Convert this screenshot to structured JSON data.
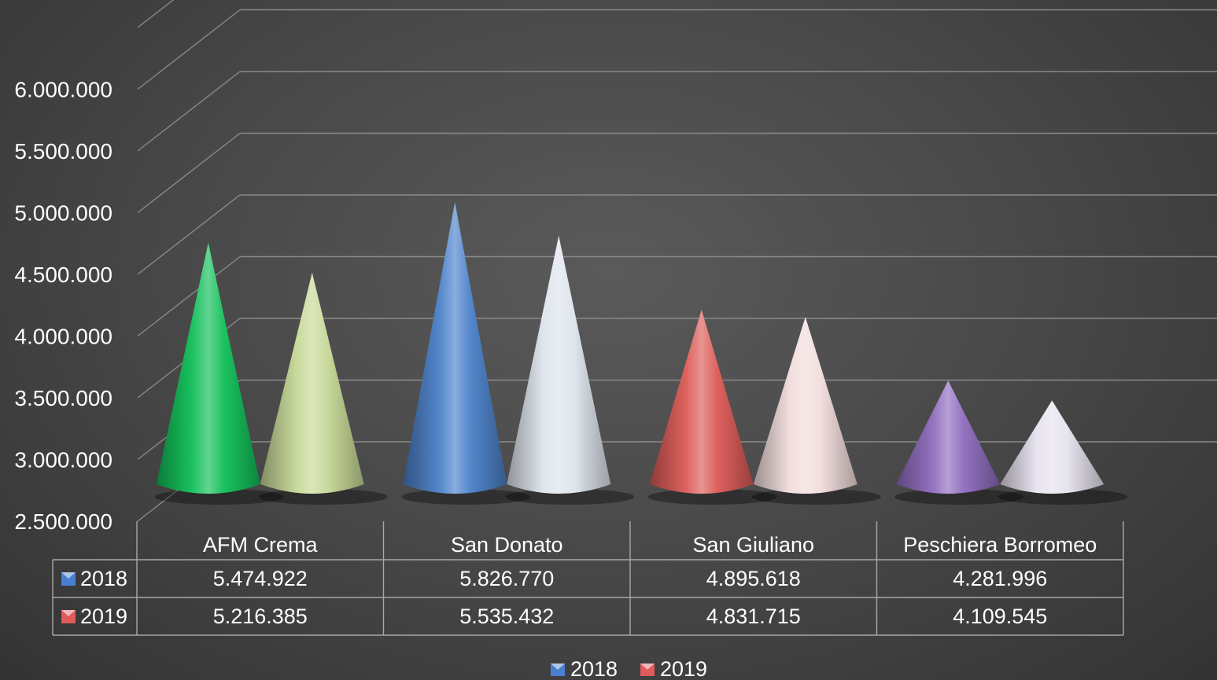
{
  "chart_data": {
    "type": "bar",
    "style": "3d-cone",
    "categories": [
      "AFM Crema",
      "San Donato",
      "San Giuliano",
      "Peschiera Borromeo"
    ],
    "series": [
      {
        "name": "2018",
        "values": [
          5474922,
          5826770,
          4895618,
          4281996
        ],
        "legend_color": "#4a7fd0"
      },
      {
        "name": "2019",
        "values": [
          5216385,
          5535432,
          4831715,
          4109545
        ],
        "legend_color": "#e05a5a"
      }
    ],
    "value_labels": {
      "2018": [
        "5.474.922",
        "5.826.770",
        "4.895.618",
        "4.281.996"
      ],
      "2019": [
        "5.216.385",
        "5.535.432",
        "4.831.715",
        "4.109.545"
      ]
    },
    "yticks": [
      {
        "value": 2500000,
        "label": "2.500.000"
      },
      {
        "value": 3000000,
        "label": "3.000.000"
      },
      {
        "value": 3500000,
        "label": "3.500.000"
      },
      {
        "value": 4000000,
        "label": "4.000.000"
      },
      {
        "value": 4500000,
        "label": "4.500.000"
      },
      {
        "value": 5000000,
        "label": "5.000.000"
      },
      {
        "value": 5500000,
        "label": "5.500.000"
      },
      {
        "value": 6000000,
        "label": "6.000.000"
      }
    ],
    "ylim": [
      2500000,
      6500000
    ],
    "grid": true,
    "data_table": true,
    "legend": "bottom",
    "title": "",
    "xlabel": "",
    "ylabel": "",
    "cone_colors": [
      [
        "#0fbf58",
        "#c6d896"
      ],
      [
        "#4a80c8",
        "#dde4ec"
      ],
      [
        "#dc5a56",
        "#f1dcdc"
      ],
      [
        "#8e6bbd",
        "#e6e1ee"
      ]
    ]
  }
}
